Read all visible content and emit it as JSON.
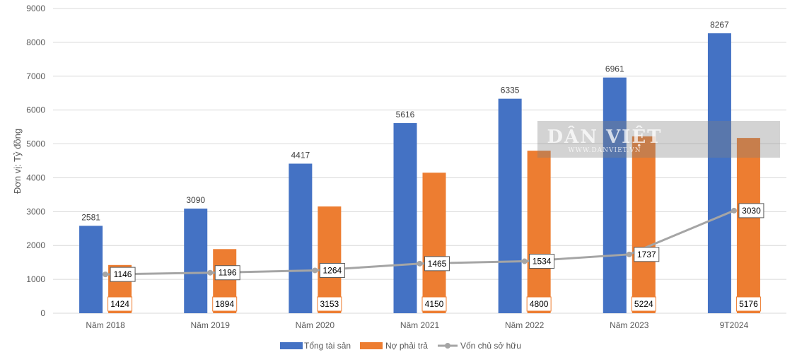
{
  "chart_data": {
    "type": "bar",
    "ylabel": "Đơn vị: Tỷ đồng",
    "ylim": [
      0,
      9000
    ],
    "yticks": [
      0,
      1000,
      2000,
      3000,
      4000,
      5000,
      6000,
      7000,
      8000,
      9000
    ],
    "grid": true,
    "legend_position": "bottom",
    "categories": [
      "Năm 2018",
      "Năm 2019",
      "Năm 2020",
      "Năm 2021",
      "Năm 2022",
      "Năm 2023",
      "9T2024"
    ],
    "series": [
      {
        "name": "Tổng tài sản",
        "type": "bar",
        "color": "#4472C4",
        "values": [
          2581,
          3090,
          4417,
          5616,
          6335,
          6961,
          8267
        ]
      },
      {
        "name": "Nợ phải trả",
        "type": "bar",
        "color": "#ED7D31",
        "values": [
          1424,
          1894,
          3153,
          4150,
          4800,
          5224,
          5176
        ]
      },
      {
        "name": "Vốn chủ sở hữu",
        "type": "line",
        "color": "#A5A5A5",
        "values": [
          1146,
          1196,
          1264,
          1465,
          1534,
          1737,
          3030
        ]
      }
    ]
  },
  "watermark": {
    "brand": "DÂN VIỆT",
    "url": "WWW.DANVIET.VN"
  }
}
